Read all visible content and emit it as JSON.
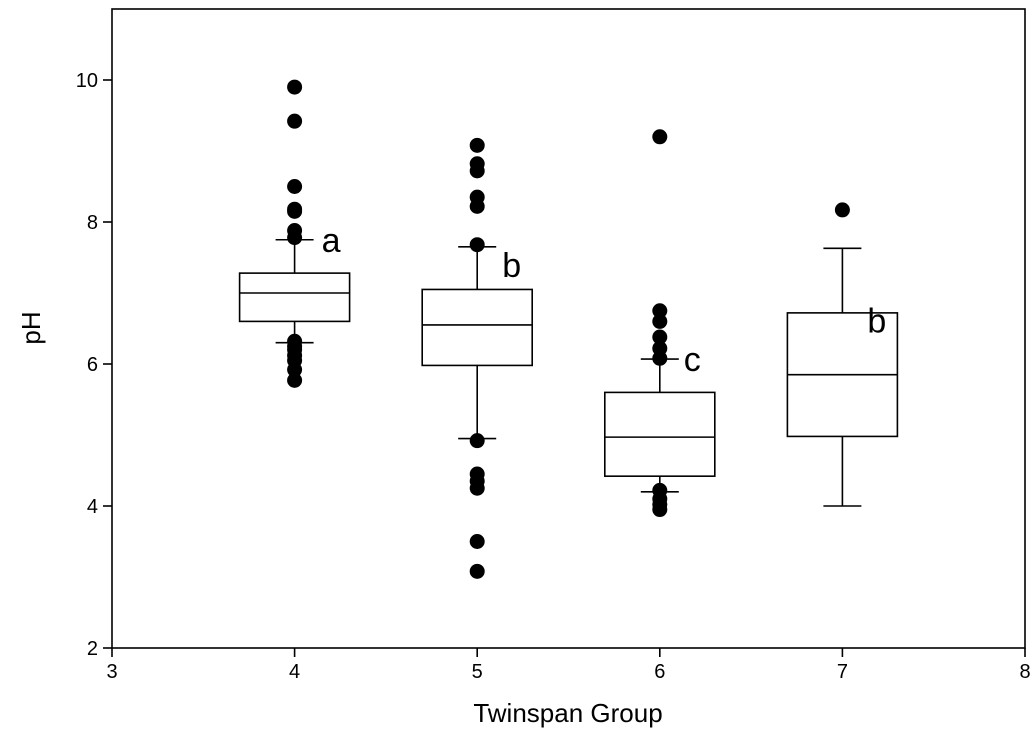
{
  "chart_data": {
    "type": "box",
    "xlabel": "Twinspan Group",
    "ylabel": "pH",
    "xlim": [
      3,
      8
    ],
    "ylim": [
      2,
      11
    ],
    "x_ticks": [
      3,
      4,
      5,
      6,
      7,
      8
    ],
    "y_ticks": [
      2,
      4,
      6,
      8,
      10
    ],
    "grid": false,
    "groups": [
      {
        "x": 4,
        "q1": 6.6,
        "median": 7.0,
        "q3": 7.28,
        "whisker_low": 6.3,
        "whisker_high": 7.75,
        "outliers": [
          9.9,
          9.42,
          8.5,
          8.18,
          8.15,
          7.88,
          7.78,
          6.32,
          6.25,
          6.2,
          6.12,
          6.05,
          5.92,
          5.77
        ],
        "letter": "a"
      },
      {
        "x": 5,
        "q1": 5.98,
        "median": 6.55,
        "q3": 7.05,
        "whisker_low": 4.95,
        "whisker_high": 7.65,
        "outliers": [
          9.08,
          8.82,
          8.72,
          8.35,
          8.22,
          7.68,
          4.92,
          4.45,
          4.35,
          4.25,
          3.5,
          3.08
        ],
        "letter": "b"
      },
      {
        "x": 6,
        "q1": 4.42,
        "median": 4.97,
        "q3": 5.6,
        "whisker_low": 4.2,
        "whisker_high": 6.07,
        "outliers": [
          9.2,
          6.75,
          6.6,
          6.38,
          6.22,
          6.08,
          4.22,
          4.1,
          4.02,
          3.95
        ],
        "letter": "c"
      },
      {
        "x": 7,
        "q1": 4.98,
        "median": 5.85,
        "q3": 6.72,
        "whisker_low": 4.0,
        "whisker_high": 7.63,
        "outliers": [
          8.17
        ],
        "letter": "b"
      }
    ]
  }
}
